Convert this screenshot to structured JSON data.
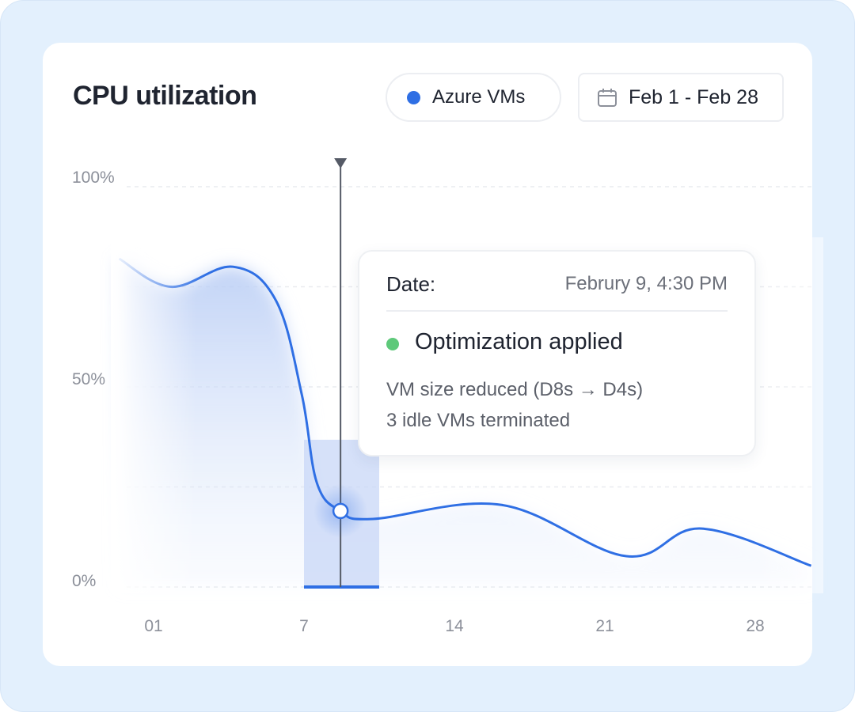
{
  "header": {
    "title": "CPU utilization"
  },
  "filters": {
    "series_label": "Azure VMs",
    "date_range": "Feb 1 - Feb 28",
    "calendar_icon": "calendar-icon"
  },
  "colors": {
    "line": "#2f6fe4",
    "status_ok": "#5ec97a",
    "fill": "#c3d4f6"
  },
  "tooltip": {
    "date_label": "Date:",
    "date_value": "Februry 9, 4:30 PM",
    "status": "Optimization applied",
    "details": [
      "VM size reduced (D8s → D4s)",
      "3 idle VMs terminated"
    ]
  },
  "chart_data": {
    "type": "area",
    "title": "CPU utilization",
    "y_ticks": [
      "100%",
      "75%",
      "50%",
      "25%",
      "0%"
    ],
    "y_tick_labels_shown": [
      "100%",
      "50%",
      "0%"
    ],
    "x_tick_labels": [
      "01",
      "7",
      "14",
      "21",
      "28"
    ],
    "ylim": [
      0,
      100
    ],
    "grid": true,
    "series": [
      {
        "name": "Azure VMs",
        "x": [
          -1.6,
          0.8,
          3.7,
          5.7,
          6.9,
          7.6,
          8.7,
          10.2,
          16.2,
          22,
          25.5,
          30.6
        ],
        "y": [
          82,
          75,
          80,
          71.5,
          48,
          26,
          19,
          17,
          20.5,
          7.7,
          14.6,
          5.3
        ]
      }
    ],
    "highlight": {
      "x_start": 7,
      "x_end": 10.5,
      "marker_x": 8.7,
      "marker_y": 19
    }
  }
}
